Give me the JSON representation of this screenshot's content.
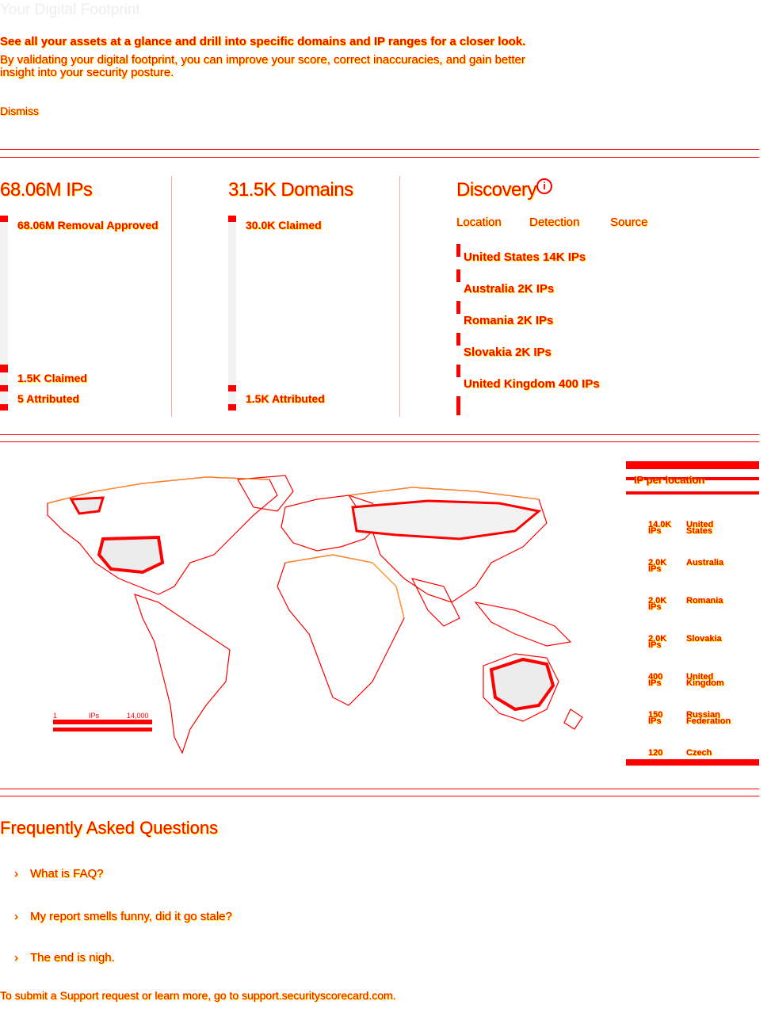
{
  "header": {
    "title": "Your Digital Footprint",
    "intro_line1": "See all your assets at a glance and drill into specific domains and IP ranges for a closer look.",
    "intro_line2": "By validating your digital footprint, you can improve your score, correct inaccuracies, and gain better insight into your security posture.",
    "dismiss_label": "Dismiss"
  },
  "ips_panel": {
    "title": "68.06M IPs",
    "removal_label": "68.06M Removal Approved",
    "claimed_label": "1.5K Claimed",
    "attributed_label": "5 Attributed"
  },
  "domains_panel": {
    "title": "31.5K Domains",
    "claimed_label": "30.0K Claimed",
    "attributed_label": "1.5K Attributed"
  },
  "discovery": {
    "title": "Discovery",
    "info_icon": "info-circle-icon",
    "tabs": [
      "Location",
      "Detection",
      "Source"
    ],
    "items": [
      "United States 14K IPs",
      "Australia 2K IPs",
      "Romania 2K IPs",
      "Slovakia 2K IPs",
      "United Kingdom 400 IPs"
    ]
  },
  "map": {
    "legend_min": "1",
    "legend_unit": "IPs",
    "legend_max": "14,000"
  },
  "ip_per_location": {
    "title": "IP per location",
    "rows": [
      {
        "count": "14.0K",
        "unit": "IPs",
        "name": "United States"
      },
      {
        "count": "2.0K",
        "unit": "IPs",
        "name": "Australia"
      },
      {
        "count": "2.0K",
        "unit": "IPs",
        "name": "Romania"
      },
      {
        "count": "2.0K",
        "unit": "IPs",
        "name": "Slovakia"
      },
      {
        "count": "400",
        "unit": "IPs",
        "name": "United Kingdom"
      },
      {
        "count": "150",
        "unit": "IPs",
        "name": "Russian Federation"
      },
      {
        "count": "120",
        "unit": "",
        "name": "Czech"
      }
    ]
  },
  "faq": {
    "title": "Frequently Asked Questions",
    "items": [
      "What is FAQ?",
      "My report smells funny, did it go stale?",
      "The end is nigh."
    ],
    "support_text": "To submit a Support request or learn more, go to support.securityscorecard.com."
  },
  "colors": {
    "accent": "#ff0000",
    "highlight": "#ffee00",
    "muted": "#f2f2f2"
  }
}
